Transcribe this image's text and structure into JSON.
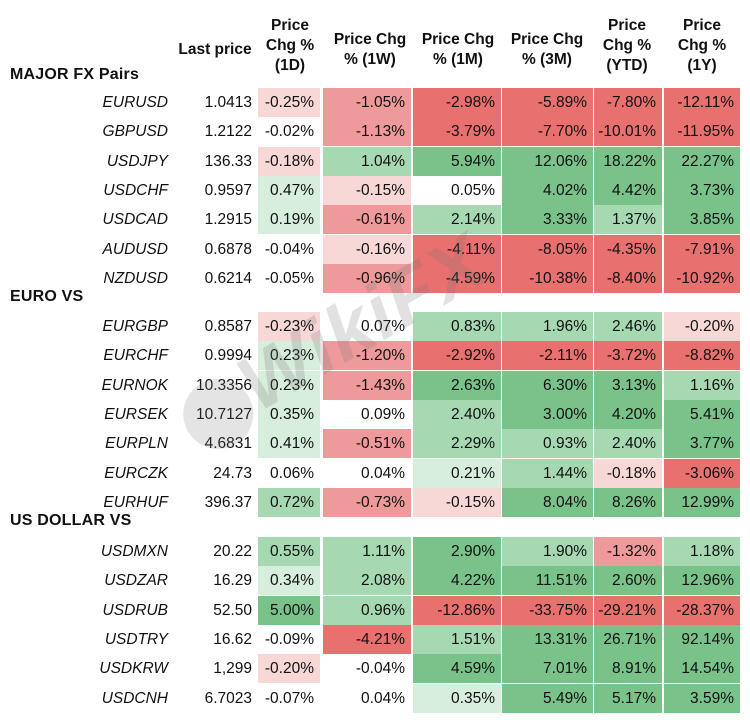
{
  "watermark": "WikiFX",
  "headers": {
    "last": "Last price",
    "d1": [
      "Price",
      "Chg %",
      "(1D)"
    ],
    "w1": [
      "Price Chg",
      "% (1W)"
    ],
    "m1": [
      "Price Chg",
      "% (1M)"
    ],
    "m3": [
      "Price Chg",
      "% (3M)"
    ],
    "ytd": [
      "Price",
      "Chg %",
      "(YTD)"
    ],
    "y1": [
      "Price",
      "Chg %",
      "(1Y)"
    ]
  },
  "colors": {
    "red_strong": "#e8706f",
    "red_mid": "#ef9a9a",
    "red_light": "#f8d7d7",
    "neutral": "#ffffff",
    "green_light": "#d8eedd",
    "green_mid": "#a6d9b1",
    "green_strong": "#79c38a"
  },
  "sections": [
    {
      "title": "MAJOR FX Pairs",
      "rows": [
        {
          "pair": "EURUSD",
          "last": "1.0413",
          "values": [
            "-0.25%",
            "-1.05%",
            "-2.98%",
            "-5.89%",
            "-7.80%",
            "-12.11%"
          ]
        },
        {
          "pair": "GBPUSD",
          "last": "1.2122",
          "values": [
            "-0.02%",
            "-1.13%",
            "-3.79%",
            "-7.70%",
            "-10.01%",
            "-11.95%"
          ]
        },
        {
          "pair": "USDJPY",
          "last": "136.33",
          "values": [
            "-0.18%",
            "1.04%",
            "5.94%",
            "12.06%",
            "18.22%",
            "22.27%"
          ]
        },
        {
          "pair": "USDCHF",
          "last": "0.9597",
          "values": [
            "0.47%",
            "-0.15%",
            "0.05%",
            "4.02%",
            "4.42%",
            "3.73%"
          ]
        },
        {
          "pair": "USDCAD",
          "last": "1.2915",
          "values": [
            "0.19%",
            "-0.61%",
            "2.14%",
            "3.33%",
            "1.37%",
            "3.85%"
          ]
        },
        {
          "pair": "AUDUSD",
          "last": "0.6878",
          "values": [
            "-0.04%",
            "-0.16%",
            "-4.11%",
            "-8.05%",
            "-4.35%",
            "-7.91%"
          ]
        },
        {
          "pair": "NZDUSD",
          "last": "0.6214",
          "values": [
            "-0.05%",
            "-0.96%",
            "-4.59%",
            "-10.38%",
            "-8.40%",
            "-10.92%"
          ]
        }
      ]
    },
    {
      "title": "EURO VS",
      "rows": [
        {
          "pair": "EURGBP",
          "last": "0.8587",
          "values": [
            "-0.23%",
            "0.07%",
            "0.83%",
            "1.96%",
            "2.46%",
            "-0.20%"
          ]
        },
        {
          "pair": "EURCHF",
          "last": "0.9994",
          "values": [
            "0.23%",
            "-1.20%",
            "-2.92%",
            "-2.11%",
            "-3.72%",
            "-8.82%"
          ]
        },
        {
          "pair": "EURNOK",
          "last": "10.3356",
          "values": [
            "0.23%",
            "-1.43%",
            "2.63%",
            "6.30%",
            "3.13%",
            "1.16%"
          ]
        },
        {
          "pair": "EURSEK",
          "last": "10.7127",
          "values": [
            "0.35%",
            "0.09%",
            "2.40%",
            "3.00%",
            "4.20%",
            "5.41%"
          ]
        },
        {
          "pair": "EURPLN",
          "last": "4.6831",
          "values": [
            "0.41%",
            "-0.51%",
            "2.29%",
            "0.93%",
            "2.40%",
            "3.77%"
          ]
        },
        {
          "pair": "EURCZK",
          "last": "24.73",
          "values": [
            "0.06%",
            "0.04%",
            "0.21%",
            "1.44%",
            "-0.18%",
            "-3.06%"
          ]
        },
        {
          "pair": "EURHUF",
          "last": "396.37",
          "values": [
            "0.72%",
            "-0.73%",
            "-0.15%",
            "8.04%",
            "8.26%",
            "12.99%"
          ]
        }
      ]
    },
    {
      "title": "US DOLLAR VS",
      "rows": [
        {
          "pair": "USDMXN",
          "last": "20.22",
          "values": [
            "0.55%",
            "1.11%",
            "2.90%",
            "1.90%",
            "-1.32%",
            "1.18%"
          ]
        },
        {
          "pair": "USDZAR",
          "last": "16.29",
          "values": [
            "0.34%",
            "2.08%",
            "4.22%",
            "11.51%",
            "2.60%",
            "12.96%"
          ]
        },
        {
          "pair": "USDRUB",
          "last": "52.50",
          "values": [
            "5.00%",
            "0.96%",
            "-12.86%",
            "-33.75%",
            "-29.21%",
            "-28.37%"
          ]
        },
        {
          "pair": "USDTRY",
          "last": "16.62",
          "values": [
            "-0.09%",
            "-4.21%",
            "1.51%",
            "13.31%",
            "26.71%",
            "92.14%"
          ]
        },
        {
          "pair": "USDKRW",
          "last": "1,299",
          "values": [
            "-0.20%",
            "-0.04%",
            "4.59%",
            "7.01%",
            "8.91%",
            "14.54%"
          ]
        },
        {
          "pair": "USDCNH",
          "last": "6.7023",
          "values": [
            "-0.07%",
            "0.04%",
            "0.35%",
            "5.49%",
            "5.17%",
            "3.59%"
          ]
        }
      ]
    }
  ]
}
